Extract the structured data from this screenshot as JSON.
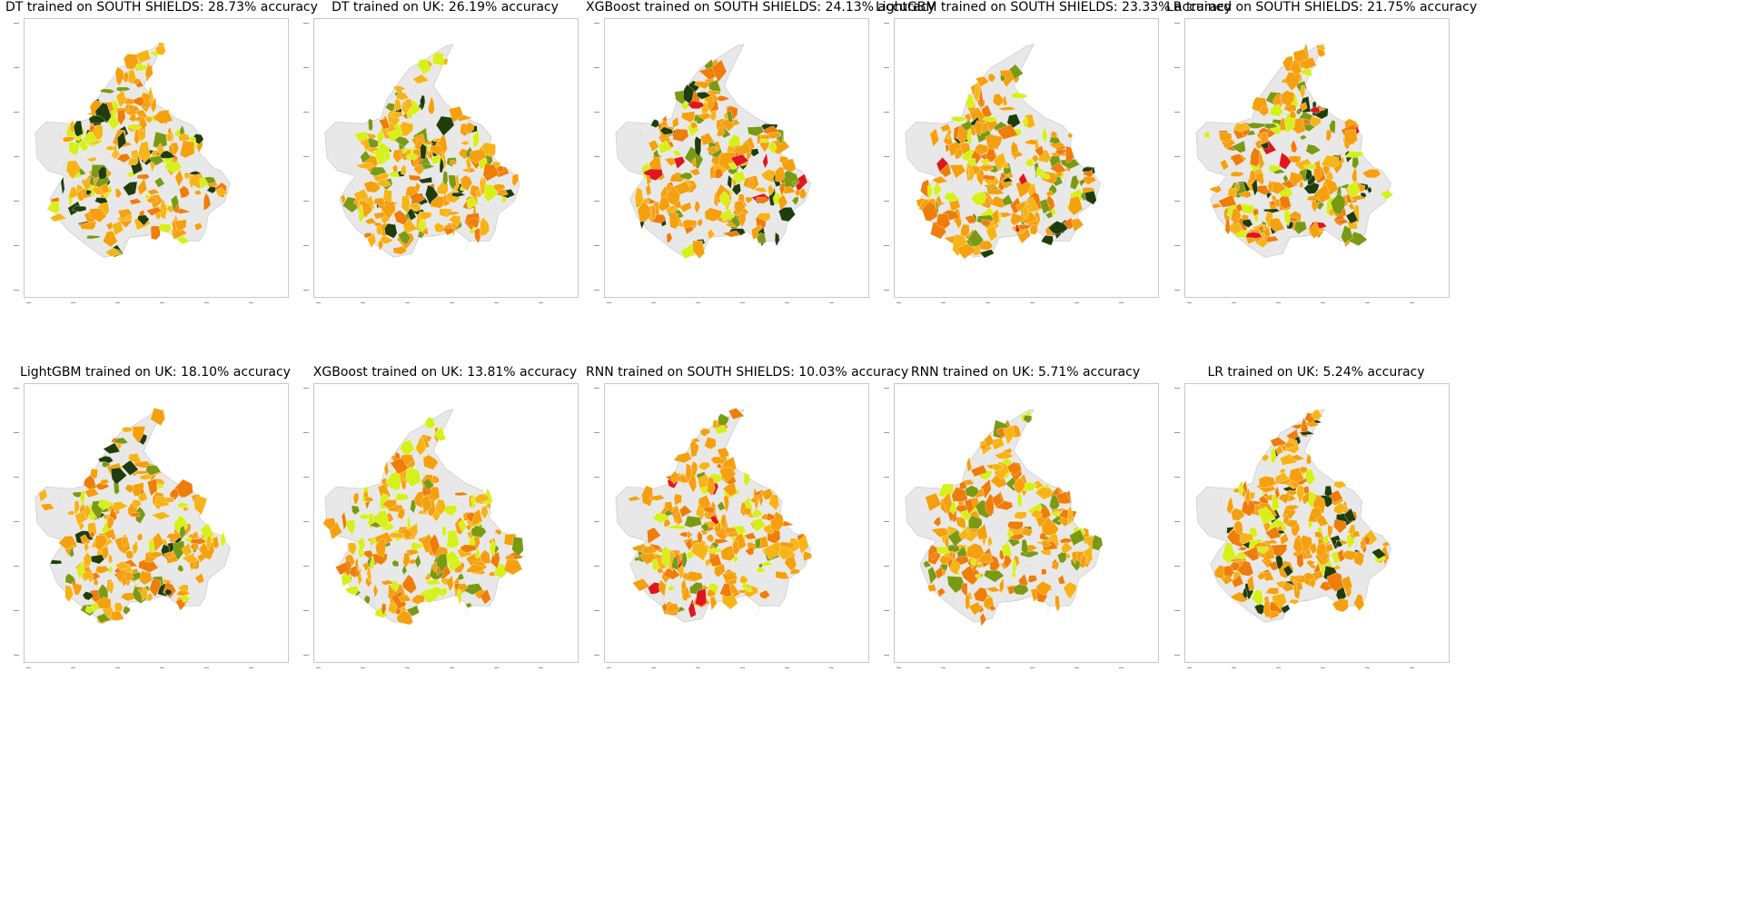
{
  "panels": [
    {
      "title": "DT trained on SOUTH SHIELDS: 28.73% accuracy",
      "palette": "mixed-dark"
    },
    {
      "title": "DT trained on UK: 26.19% accuracy",
      "palette": "mixed-dark"
    },
    {
      "title": "XGBoost trained on SOUTH SHIELDS: 24.13% accuracy",
      "palette": "mixed-red"
    },
    {
      "title": "LightGBM trained on SOUTH SHIELDS: 23.33% accuracy",
      "palette": "mixed-red"
    },
    {
      "title": "LR trained on SOUTH SHIELDS: 21.75% accuracy",
      "palette": "mixed-red"
    },
    {
      "title": "LightGBM trained on UK: 18.10% accuracy",
      "palette": "mixed-dark"
    },
    {
      "title": "XGBoost trained on UK: 13.81% accuracy",
      "palette": "orange-lime"
    },
    {
      "title": "RNN trained on SOUTH SHIELDS: 10.03% accuracy",
      "palette": "orange-red"
    },
    {
      "title": "RNN trained on UK: 5.71% accuracy",
      "palette": "orange-deep"
    },
    {
      "title": "LR trained on UK: 5.24% accuracy",
      "palette": "orange-darkspot"
    }
  ],
  "colors": {
    "background_region": "#e8e8e8",
    "boundary": "#cfcfcf",
    "orange": "#f5a00f",
    "amber": "#f7b416",
    "dark_orange": "#ef7d0a",
    "lime": "#d6f01a",
    "olive": "#7a9a14",
    "dark_green": "#1f3d0a",
    "red": "#e0161e"
  }
}
